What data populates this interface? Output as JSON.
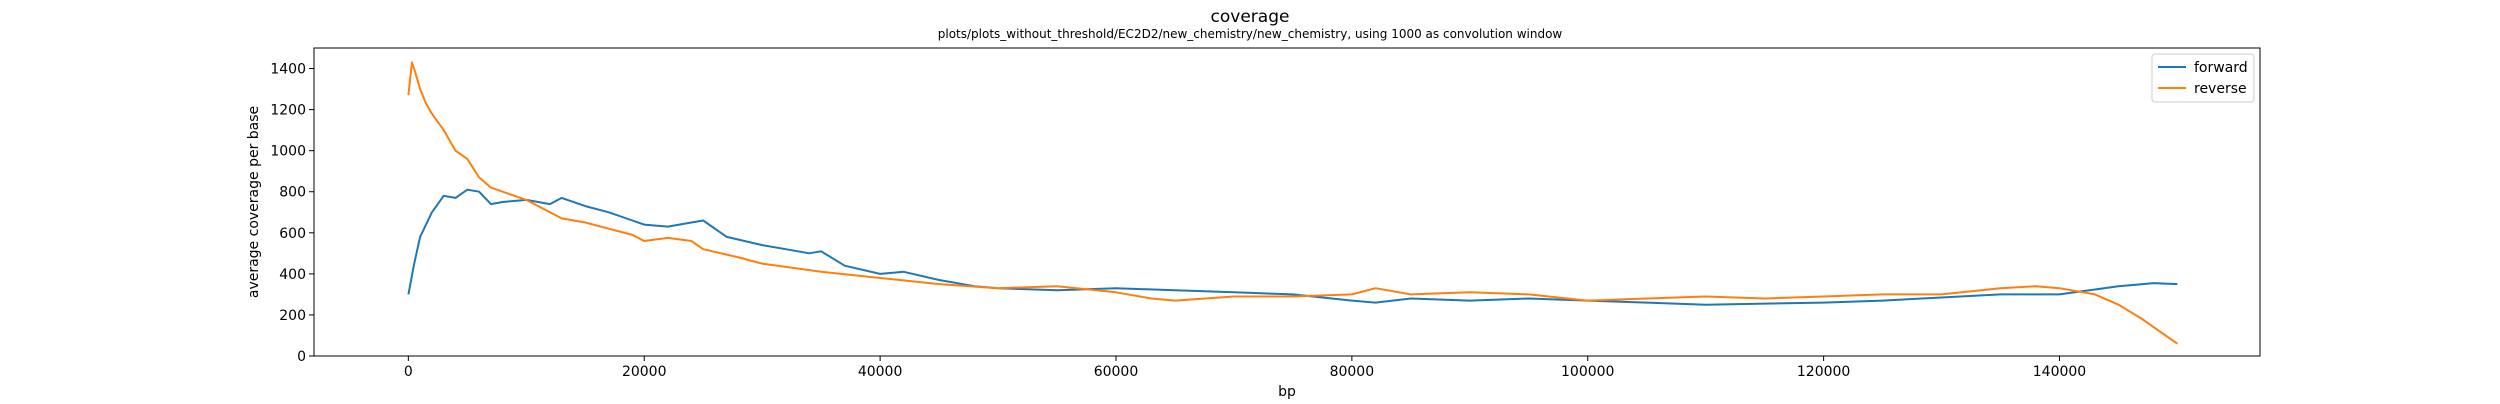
{
  "chart_data": {
    "type": "line",
    "title": "coverage",
    "subtitle": "plots/plots_without_threshold/EC2D2/new_chemistry/new_chemistry, using 1000 as convolution window",
    "xlabel": "bp",
    "ylabel": "average coverage per base",
    "xlim": [
      -8000,
      157000
    ],
    "ylim": [
      0,
      1500
    ],
    "xticks": [
      0,
      20000,
      40000,
      60000,
      80000,
      100000,
      120000,
      140000
    ],
    "yticks": [
      0,
      200,
      400,
      600,
      800,
      1000,
      1200,
      1400
    ],
    "grid": false,
    "legend_position": "top-right",
    "series": [
      {
        "name": "forward",
        "color": "#1f77b4",
        "x": [
          0,
          500,
          1000,
          2000,
          3000,
          4000,
          5000,
          6000,
          7000,
          8000,
          10000,
          12000,
          13000,
          15000,
          17000,
          20000,
          22000,
          24000,
          25000,
          27000,
          30000,
          32000,
          34000,
          35000,
          37000,
          40000,
          42000,
          45000,
          48000,
          50000,
          55000,
          60000,
          65000,
          70000,
          75000,
          80000,
          82000,
          85000,
          90000,
          95000,
          100000,
          105000,
          110000,
          115000,
          120000,
          125000,
          130000,
          135000,
          140000,
          145000,
          148000,
          150000
        ],
        "y": [
          300,
          450,
          580,
          700,
          780,
          770,
          810,
          800,
          740,
          750,
          760,
          740,
          770,
          730,
          700,
          640,
          630,
          650,
          660,
          580,
          540,
          520,
          500,
          510,
          440,
          400,
          410,
          370,
          340,
          330,
          320,
          330,
          320,
          310,
          300,
          270,
          260,
          280,
          270,
          280,
          270,
          260,
          250,
          255,
          260,
          270,
          285,
          300,
          300,
          340,
          355,
          350
        ]
      },
      {
        "name": "reverse",
        "color": "#ff7f0e",
        "x": [
          0,
          300,
          600,
          1000,
          1500,
          2000,
          3000,
          4000,
          5000,
          6000,
          7000,
          8000,
          10000,
          12000,
          13000,
          15000,
          17000,
          19000,
          20000,
          22000,
          24000,
          25000,
          28000,
          30000,
          35000,
          40000,
          45000,
          50000,
          55000,
          60000,
          63000,
          65000,
          70000,
          75000,
          80000,
          82000,
          85000,
          90000,
          95000,
          100000,
          105000,
          110000,
          115000,
          120000,
          125000,
          130000,
          135000,
          138000,
          140000,
          143000,
          145000,
          147000,
          149000,
          150000
        ],
        "y": [
          1270,
          1430,
          1380,
          1300,
          1230,
          1180,
          1100,
          1000,
          960,
          870,
          820,
          800,
          760,
          700,
          670,
          650,
          620,
          590,
          560,
          575,
          560,
          520,
          480,
          450,
          410,
          380,
          350,
          330,
          340,
          310,
          280,
          270,
          290,
          290,
          300,
          330,
          300,
          310,
          300,
          270,
          280,
          290,
          280,
          290,
          300,
          300,
          330,
          340,
          330,
          300,
          250,
          180,
          100,
          60
        ]
      }
    ]
  }
}
